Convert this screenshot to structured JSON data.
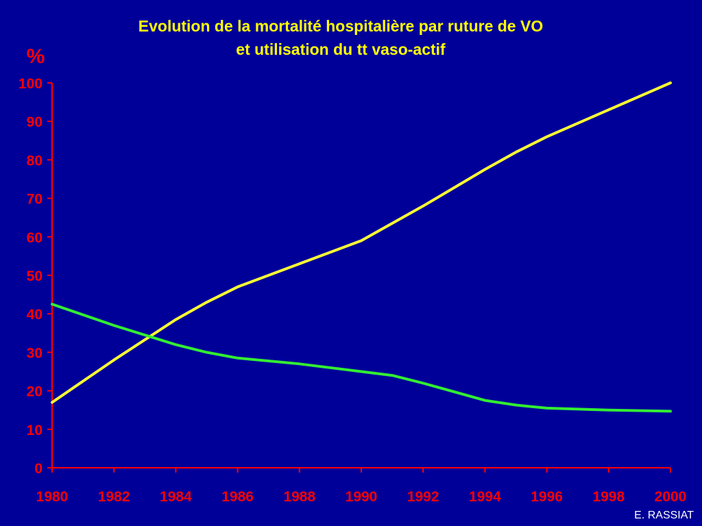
{
  "colors": {
    "background": "#000099",
    "axis": "#ff0000",
    "title": "#ffff00",
    "series_yellow": "#ffff33",
    "series_green": "#33ee33"
  },
  "footer": {
    "credit": "E. RASSIAT"
  },
  "chart_data": {
    "type": "line",
    "title": "Evolution de la mortalité hospitalière par ruture de VO",
    "subtitle": "et utilisation du tt vaso-actif",
    "ylabel": "%",
    "xlabel": "",
    "xlim": [
      1980,
      2000
    ],
    "ylim": [
      0,
      100
    ],
    "x_ticks": [
      1980,
      1982,
      1984,
      1986,
      1988,
      1990,
      1992,
      1994,
      1996,
      1998,
      2000
    ],
    "y_ticks": [
      0,
      10,
      20,
      30,
      40,
      50,
      60,
      70,
      80,
      90,
      100
    ],
    "grid": false,
    "legend": "none",
    "series": [
      {
        "color": "#ffff33",
        "x": [
          1980,
          1982,
          1984,
          1985,
          1986,
          1988,
          1990,
          1992,
          1994,
          1995,
          1996,
          1998,
          2000
        ],
        "y": [
          17,
          28,
          38.5,
          43,
          47,
          53,
          59,
          68,
          77.5,
          82,
          86,
          93,
          100
        ]
      },
      {
        "color": "#33ee33",
        "x": [
          1980,
          1982,
          1984,
          1985,
          1986,
          1988,
          1990,
          1991,
          1992,
          1994,
          1995,
          1996,
          1998,
          2000
        ],
        "y": [
          42.5,
          37,
          32,
          30,
          28.5,
          27,
          25,
          24,
          22,
          17.5,
          16.3,
          15.5,
          15,
          14.7
        ]
      }
    ]
  }
}
